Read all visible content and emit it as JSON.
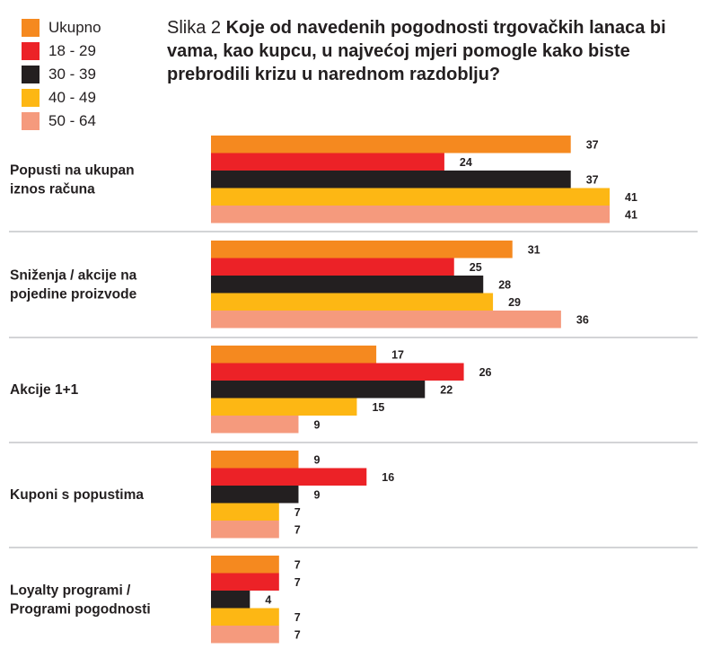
{
  "title": {
    "prefix": "Slika 2",
    "text": "Koje od navedenih pogodnosti trgovačkih lanaca bi vama, kao kupcu, u najvećoj mjeri pomogle kako biste prebrodili krizu u narednom razdoblju?"
  },
  "chart_data": {
    "type": "bar",
    "orientation": "horizontal",
    "legend_position": "top-left",
    "grid": false,
    "xlim": [
      0,
      45
    ],
    "categories": [
      [
        "Popusti na ukupan",
        "iznos računa"
      ],
      [
        "Sniženja / akcije na",
        "pojedine proizvode"
      ],
      [
        "Akcije 1+1"
      ],
      [
        "Kuponi s popustima"
      ],
      [
        "Loyalty programi /",
        "Programi pogodnosti"
      ]
    ],
    "series": [
      {
        "name": "Ukupno",
        "color": "#f5891f",
        "values": [
          37,
          31,
          17,
          9,
          7
        ]
      },
      {
        "name": "18 - 29",
        "color": "#ec2227",
        "values": [
          24,
          25,
          26,
          16,
          7
        ]
      },
      {
        "name": "30 - 39",
        "color": "#231f20",
        "values": [
          37,
          28,
          22,
          9,
          4
        ]
      },
      {
        "name": "40 - 49",
        "color": "#fdb714",
        "values": [
          41,
          29,
          15,
          7,
          7
        ]
      },
      {
        "name": "50 - 64",
        "color": "#f59a7d",
        "values": [
          41,
          36,
          9,
          7,
          7
        ]
      }
    ],
    "separator_color": "#a7a9ac"
  }
}
